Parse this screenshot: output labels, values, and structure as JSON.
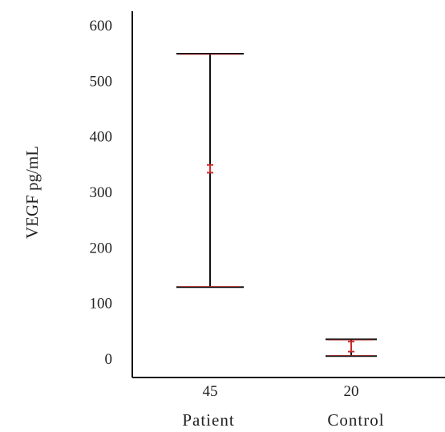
{
  "chart_data": {
    "type": "error-bar",
    "ylabel": "VEGF pg/mL",
    "ylim": [
      0,
      600
    ],
    "yticks": [
      0,
      100,
      200,
      300,
      400,
      500,
      600
    ],
    "categories": [
      "Patient",
      "Control"
    ],
    "counts": [
      "45",
      "20"
    ],
    "series": [
      {
        "range_low": [
          128,
          4
        ],
        "range_high": [
          548,
          34
        ],
        "mean": [
          340,
          20
        ],
        "ci_low": [
          334,
          12
        ],
        "ci_high": [
          348,
          30
        ]
      }
    ],
    "colors": {
      "range": "#111111",
      "range_caps": "#cc2a2a",
      "ci": "#cc2a2a",
      "axis": "#111111"
    }
  }
}
